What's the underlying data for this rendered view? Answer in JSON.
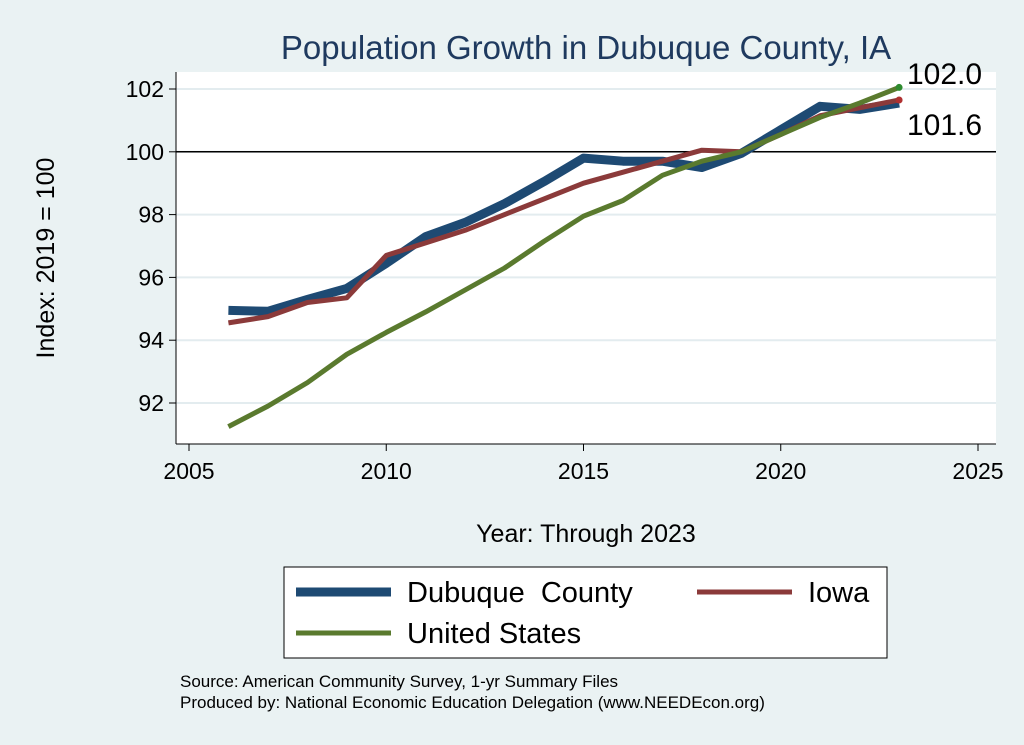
{
  "chart_data": {
    "type": "line",
    "title": "Population Growth in Dubuque County, IA",
    "xlabel": "Year: Through 2023",
    "ylabel": "Index: 2019 = 100",
    "xlim": [
      2005,
      2025
    ],
    "ylim": [
      90.7,
      102.6
    ],
    "xticks": [
      2005,
      2010,
      2015,
      2020,
      2025
    ],
    "yticks": [
      92,
      94,
      96,
      98,
      100,
      102
    ],
    "reference_line": 100,
    "grid": true,
    "legend_position": "bottom",
    "series": [
      {
        "name": "Dubuque  County",
        "color": "#1e4a73",
        "x": [
          2006,
          2007,
          2008,
          2009,
          2010,
          2011,
          2012,
          2013,
          2014,
          2015,
          2016,
          2017,
          2018,
          2019,
          2020,
          2021,
          2022,
          2023
        ],
        "values": [
          94.95,
          94.92,
          95.3,
          95.65,
          96.45,
          97.3,
          97.75,
          98.35,
          99.05,
          99.8,
          99.7,
          99.7,
          99.5,
          99.95,
          100.7,
          101.45,
          101.35,
          101.55
        ]
      },
      {
        "name": "Iowa",
        "color": "#8b3a3a",
        "x": [
          2006,
          2007,
          2008,
          2009,
          2010,
          2011,
          2012,
          2013,
          2014,
          2015,
          2016,
          2017,
          2018,
          2019,
          2020,
          2021,
          2022,
          2023
        ],
        "values": [
          94.55,
          94.75,
          95.2,
          95.35,
          96.7,
          97.1,
          97.5,
          98.0,
          98.5,
          99.0,
          99.35,
          99.7,
          100.05,
          100.0,
          100.55,
          101.15,
          101.4,
          101.65
        ]
      },
      {
        "name": "United States",
        "color": "#5a7a2e",
        "x": [
          2006,
          2007,
          2008,
          2009,
          2010,
          2011,
          2012,
          2013,
          2014,
          2015,
          2016,
          2017,
          2018,
          2019,
          2020,
          2021,
          2022,
          2023
        ],
        "values": [
          91.25,
          91.9,
          92.65,
          93.55,
          94.25,
          94.9,
          95.6,
          96.3,
          97.15,
          97.95,
          98.45,
          99.25,
          99.7,
          100.0,
          100.55,
          101.1,
          101.55,
          102.05
        ]
      }
    ],
    "end_labels": [
      "102.0",
      "101.6"
    ]
  },
  "source_line": "Source: American Community Survey, 1-yr Summary Files",
  "produced_line": "Produced by: National Economic Education Delegation (www.NEEDEcon.org)"
}
